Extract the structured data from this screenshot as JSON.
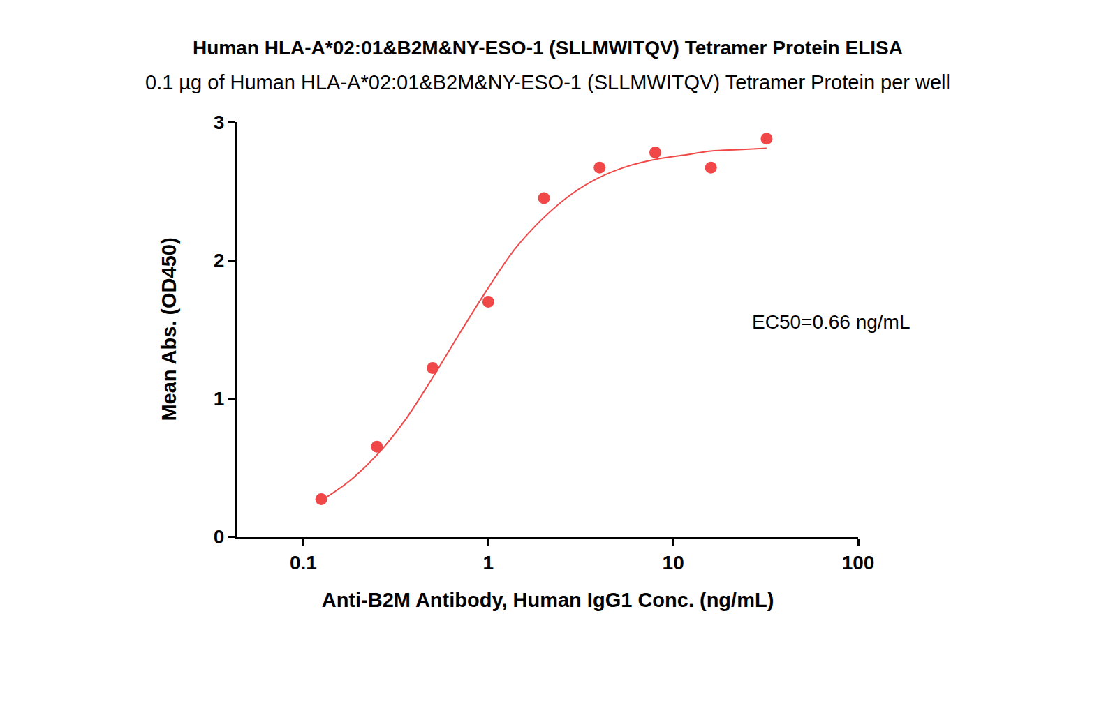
{
  "chart_data": {
    "type": "scatter",
    "title": "Human HLA-A*02:01&B2M&NY-ESO-1 (SLLMWITQV) Tetramer Protein ELISA",
    "subtitle": "0.1 µg of Human HLA-A*02:01&B2M&NY-ESO-1 (SLLMWITQV) Tetramer Protein per well",
    "x_label": "Anti-B2M Antibody, Human IgG1 Conc. (ng/mL)",
    "y_label": "Mean Abs. (OD450)",
    "annotations": [
      "EC50=0.66 ng/mL"
    ],
    "log": "x",
    "grid": false,
    "xlim": [
      0.044,
      100
    ],
    "xticks": [
      0.1,
      1,
      10,
      100
    ],
    "ylim": [
      0,
      3
    ],
    "yticks": [
      0,
      1,
      2,
      3
    ],
    "series": [
      {
        "type": "scatter",
        "marker": "circle",
        "color": "#f04848",
        "x": [
          0.125,
          0.25,
          0.5,
          1,
          2,
          4,
          8,
          16,
          32
        ],
        "values": [
          0.27,
          0.65,
          1.22,
          1.7,
          2.45,
          2.67,
          2.78,
          2.67,
          2.88
        ]
      },
      {
        "type": "line",
        "line_style": "solid",
        "color": "#f04848",
        "x": [
          0.125,
          0.177,
          0.25,
          0.354,
          0.5,
          0.707,
          1,
          1.41,
          2,
          2.83,
          4,
          5.66,
          8,
          11.3,
          16,
          22.6,
          32
        ],
        "values": [
          0.26,
          0.4,
          0.59,
          0.84,
          1.15,
          1.48,
          1.8,
          2.09,
          2.31,
          2.48,
          2.6,
          2.68,
          2.73,
          2.76,
          2.79,
          2.8,
          2.81
        ]
      }
    ]
  }
}
